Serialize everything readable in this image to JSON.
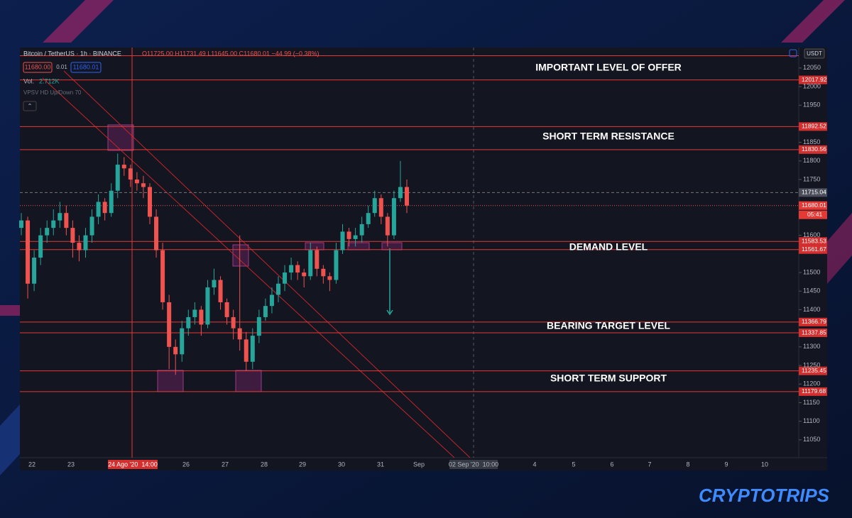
{
  "header": {
    "symbol": "Bitcoin / TetherUS · 1h · BINANCE",
    "ohlc": "O11725.00 H11731.49 L11645.00 C11680.01 −44.99 (−0.38%)",
    "sell": "11680.00",
    "spread": "0.01",
    "buy": "11680.01",
    "volume_label": "Vol.",
    "volume_value": "2.712K",
    "indicator": "VPSV HD Up/Down 70"
  },
  "currency": "USDT",
  "annotations": [
    "IMPORTANT LEVEL OF OFFER",
    "SHORT TERM RESISTANCE",
    "DEMAND LEVEL",
    "BEARING TARGET LEVEL",
    "SHORT TERM SUPPORT"
  ],
  "ylim": [
    11002,
    12105
  ],
  "yticks": [
    12050,
    12000,
    11950,
    11850,
    11800,
    11750,
    11600,
    11500,
    11450,
    11400,
    11300,
    11250,
    11200,
    11150,
    11100,
    11050
  ],
  "top_level": 12083,
  "levels": [
    12017.92,
    11892.52,
    11830.56,
    11583.53,
    11561.67,
    11366.79,
    11337.85,
    11235.45,
    11179.68
  ],
  "crosshair_price": 11715.04,
  "current_price": 11680.01,
  "countdown": "05:41",
  "time_labels": [
    "22",
    "23",
    "26",
    "27",
    "28",
    "29",
    "30",
    "31",
    "Sep",
    "4",
    "5",
    "6",
    "7",
    "8",
    "9",
    "10"
  ],
  "crosshair_time": "24 Ago '20  14:00",
  "future_time": "02 Sep '20  10:00",
  "brand": "CRYPTOTRIPS",
  "candles": [
    [
      11620,
      11660,
      11600,
      11640
    ],
    [
      11640,
      11650,
      11430,
      11470
    ],
    [
      11470,
      11560,
      11450,
      11540
    ],
    [
      11540,
      11620,
      11520,
      11600
    ],
    [
      11600,
      11640,
      11580,
      11620
    ],
    [
      11620,
      11670,
      11600,
      11640
    ],
    [
      11640,
      11690,
      11620,
      11660
    ],
    [
      11660,
      11680,
      11600,
      11620
    ],
    [
      11620,
      11640,
      11540,
      11580
    ],
    [
      11580,
      11600,
      11530,
      11560
    ],
    [
      11560,
      11620,
      11540,
      11600
    ],
    [
      11600,
      11670,
      11580,
      11650
    ],
    [
      11650,
      11710,
      11630,
      11690
    ],
    [
      11690,
      11700,
      11640,
      11660
    ],
    [
      11660,
      11740,
      11650,
      11720
    ],
    [
      11720,
      11820,
      11700,
      11790
    ],
    [
      11790,
      11810,
      11760,
      11780
    ],
    [
      11780,
      11790,
      11730,
      11750
    ],
    [
      11750,
      11770,
      11720,
      11740
    ],
    [
      11740,
      11760,
      11700,
      11730
    ],
    [
      11730,
      11740,
      11630,
      11650
    ],
    [
      11650,
      11670,
      11540,
      11560
    ],
    [
      11560,
      11580,
      11400,
      11420
    ],
    [
      11420,
      11440,
      11240,
      11300
    ],
    [
      11300,
      11320,
      11225,
      11280
    ],
    [
      11280,
      11370,
      11260,
      11350
    ],
    [
      11350,
      11400,
      11330,
      11380
    ],
    [
      11380,
      11420,
      11360,
      11400
    ],
    [
      11400,
      11410,
      11330,
      11360
    ],
    [
      11360,
      11480,
      11350,
      11460
    ],
    [
      11460,
      11510,
      11440,
      11480
    ],
    [
      11480,
      11490,
      11400,
      11420
    ],
    [
      11420,
      11430,
      11360,
      11380
    ],
    [
      11380,
      11400,
      11320,
      11350
    ],
    [
      11350,
      11600,
      11290,
      11320
    ],
    [
      11320,
      11340,
      11235,
      11260
    ],
    [
      11260,
      11350,
      11240,
      11330
    ],
    [
      11330,
      11400,
      11310,
      11380
    ],
    [
      11380,
      11430,
      11370,
      11410
    ],
    [
      11410,
      11460,
      11390,
      11440
    ],
    [
      11440,
      11490,
      11420,
      11470
    ],
    [
      11470,
      11520,
      11450,
      11500
    ],
    [
      11500,
      11540,
      11480,
      11520
    ],
    [
      11520,
      11530,
      11480,
      11500
    ],
    [
      11500,
      11510,
      11460,
      11490
    ],
    [
      11490,
      11580,
      11480,
      11560
    ],
    [
      11560,
      11570,
      11490,
      11510
    ],
    [
      11510,
      11520,
      11470,
      11490
    ],
    [
      11490,
      11500,
      11450,
      11480
    ],
    [
      11480,
      11580,
      11470,
      11560
    ],
    [
      11560,
      11630,
      11550,
      11610
    ],
    [
      11610,
      11620,
      11570,
      11590
    ],
    [
      11590,
      11620,
      11570,
      11600
    ],
    [
      11600,
      11650,
      11580,
      11630
    ],
    [
      11630,
      11680,
      11620,
      11660
    ],
    [
      11660,
      11720,
      11650,
      11700
    ],
    [
      11700,
      11710,
      11630,
      11650
    ],
    [
      11650,
      11660,
      11570,
      11600
    ],
    [
      11600,
      11720,
      11590,
      11700
    ],
    [
      11700,
      11800,
      11690,
      11730
    ],
    [
      11730,
      11750,
      11660,
      11680
    ]
  ]
}
